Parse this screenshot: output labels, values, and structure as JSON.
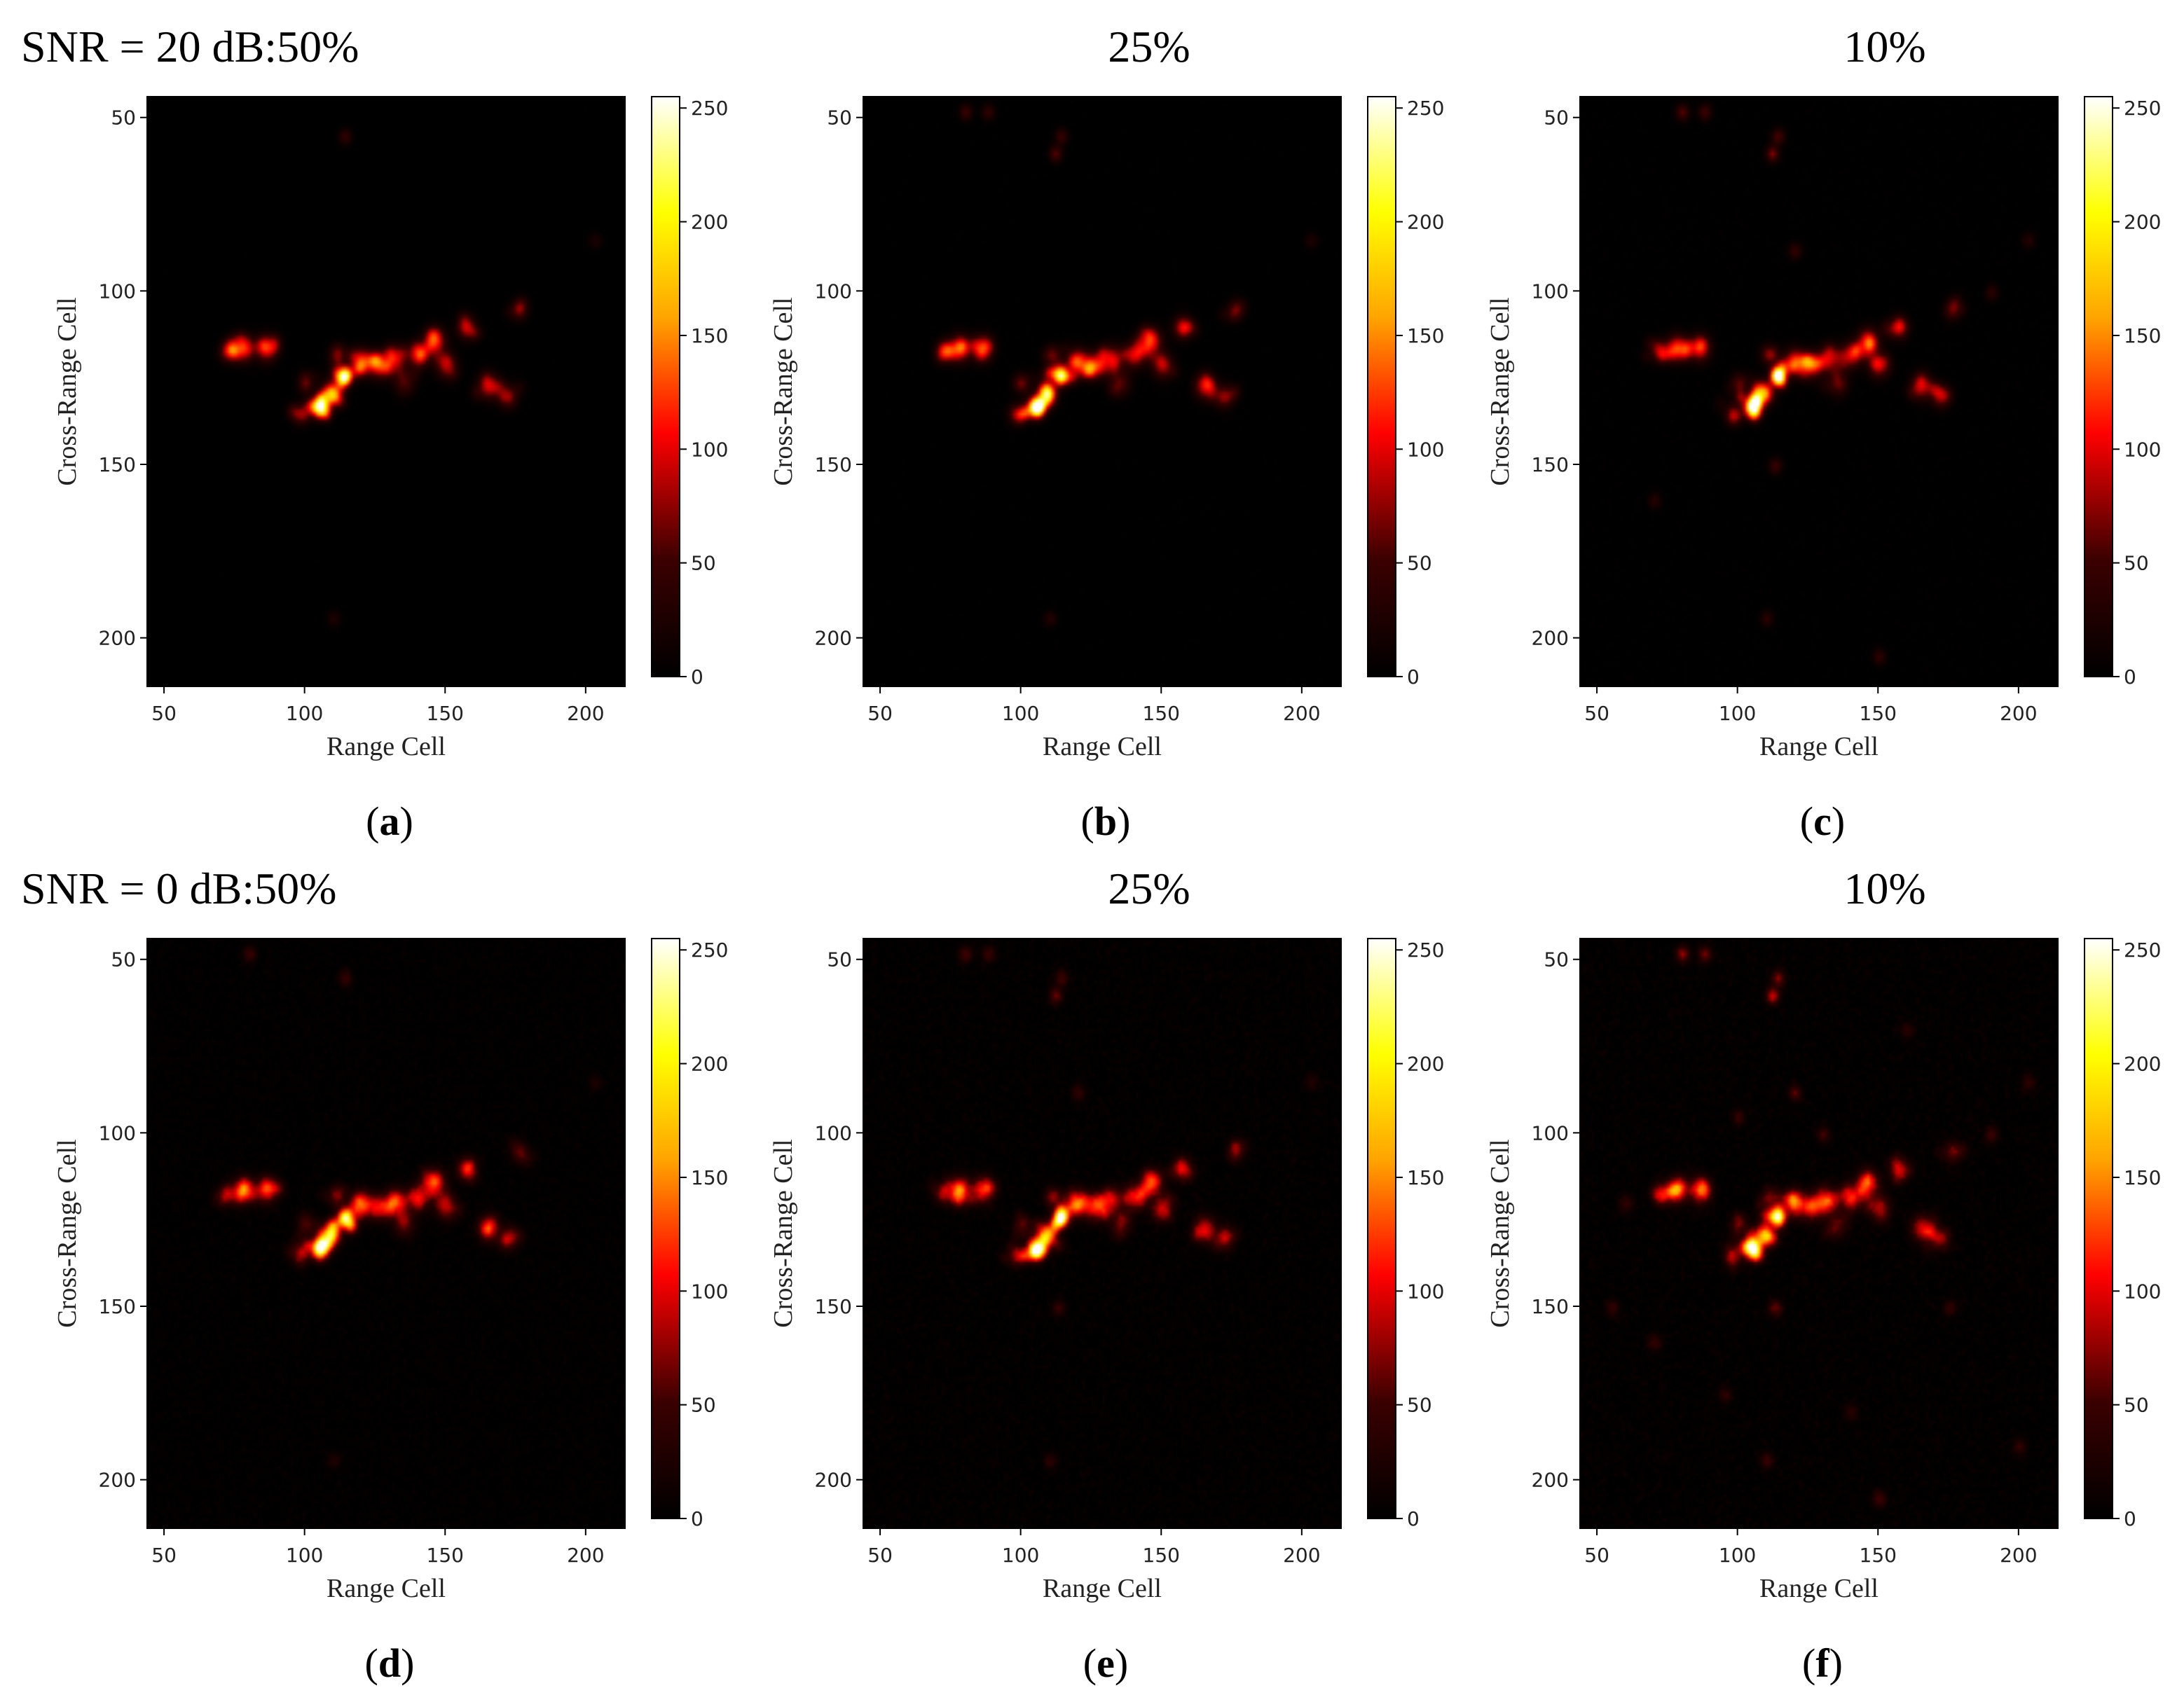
{
  "figure": {
    "rows": [
      {
        "snr_label": "SNR = 20 dB:",
        "panels": [
          {
            "header": "50%",
            "caption": "a",
            "noise": 0.05,
            "spread": 0.15
          },
          {
            "header": "25%",
            "caption": "b",
            "noise": 0.06,
            "spread": 0.28
          },
          {
            "header": "10%",
            "caption": "c",
            "noise": 0.08,
            "spread": 0.55
          }
        ]
      },
      {
        "snr_label": "SNR = 0 dB:",
        "panels": [
          {
            "header": "50%",
            "caption": "d",
            "noise": 0.22,
            "spread": 0.2
          },
          {
            "header": "25%",
            "caption": "e",
            "noise": 0.28,
            "spread": 0.4
          },
          {
            "header": "10%",
            "caption": "f",
            "noise": 0.3,
            "spread": 1.0
          }
        ]
      }
    ]
  },
  "chart_data": {
    "type": "heatmap",
    "xlabel": "Range Cell",
    "ylabel": "Cross-Range Cell",
    "x_ticks": [
      50,
      100,
      150,
      200
    ],
    "y_ticks": [
      50,
      100,
      150,
      200
    ],
    "xlim": [
      44,
      214
    ],
    "ylim": [
      214,
      44
    ],
    "colorbar": {
      "ticks": [
        0,
        50,
        100,
        150,
        200,
        250
      ],
      "range": [
        0,
        255
      ],
      "colormap": "hot"
    },
    "colormap_stops": [
      "#000000",
      "#3a0000",
      "#ff0000",
      "#ffa500",
      "#ffff00",
      "#ffffff"
    ],
    "target_scatterers": [
      {
        "x": 105,
        "y": 133,
        "intensity": 245,
        "sigma": 2.0
      },
      {
        "x": 114,
        "y": 124,
        "intensity": 230,
        "sigma": 1.8
      },
      {
        "x": 109,
        "y": 129,
        "intensity": 160,
        "sigma": 2.2
      },
      {
        "x": 78,
        "y": 116,
        "intensity": 120,
        "sigma": 2.5
      },
      {
        "x": 86,
        "y": 116,
        "intensity": 110,
        "sigma": 2.5
      },
      {
        "x": 72,
        "y": 117,
        "intensity": 80,
        "sigma": 2.0
      },
      {
        "x": 120,
        "y": 120,
        "intensity": 120,
        "sigma": 2.5
      },
      {
        "x": 126,
        "y": 121,
        "intensity": 100,
        "sigma": 2.5
      },
      {
        "x": 132,
        "y": 119,
        "intensity": 90,
        "sigma": 2.5
      },
      {
        "x": 140,
        "y": 118,
        "intensity": 95,
        "sigma": 2.5
      },
      {
        "x": 146,
        "y": 114,
        "intensity": 110,
        "sigma": 2.5
      },
      {
        "x": 150,
        "y": 121,
        "intensity": 80,
        "sigma": 2.5
      },
      {
        "x": 157,
        "y": 110,
        "intensity": 90,
        "sigma": 2.2
      },
      {
        "x": 165,
        "y": 127,
        "intensity": 90,
        "sigma": 2.5
      },
      {
        "x": 172,
        "y": 130,
        "intensity": 75,
        "sigma": 2.2
      },
      {
        "x": 176,
        "y": 105,
        "intensity": 60,
        "sigma": 2.0
      },
      {
        "x": 98,
        "y": 135,
        "intensity": 70,
        "sigma": 2.0
      },
      {
        "x": 111,
        "y": 118,
        "intensity": 60,
        "sigma": 2.0
      },
      {
        "x": 135,
        "y": 126,
        "intensity": 55,
        "sigma": 2.5
      },
      {
        "x": 100,
        "y": 126,
        "intensity": 50,
        "sigma": 2.0
      }
    ],
    "sidelobe_points": [
      {
        "x": 114,
        "y": 55,
        "intensity": 70
      },
      {
        "x": 110,
        "y": 194,
        "intensity": 45
      },
      {
        "x": 203,
        "y": 85,
        "intensity": 40
      },
      {
        "x": 80,
        "y": 48,
        "intensity": 75
      },
      {
        "x": 88,
        "y": 48,
        "intensity": 65
      },
      {
        "x": 112,
        "y": 60,
        "intensity": 90
      },
      {
        "x": 113,
        "y": 150,
        "intensity": 60
      },
      {
        "x": 120,
        "y": 88,
        "intensity": 55
      },
      {
        "x": 150,
        "y": 205,
        "intensity": 50
      },
      {
        "x": 70,
        "y": 160,
        "intensity": 40
      },
      {
        "x": 190,
        "y": 100,
        "intensity": 45
      },
      {
        "x": 200,
        "y": 190,
        "intensity": 40
      },
      {
        "x": 55,
        "y": 150,
        "intensity": 40
      },
      {
        "x": 140,
        "y": 180,
        "intensity": 35
      },
      {
        "x": 95,
        "y": 175,
        "intensity": 35
      },
      {
        "x": 160,
        "y": 70,
        "intensity": 35
      },
      {
        "x": 130,
        "y": 100,
        "intensity": 45
      },
      {
        "x": 100,
        "y": 95,
        "intensity": 40
      },
      {
        "x": 175,
        "y": 150,
        "intensity": 40
      },
      {
        "x": 60,
        "y": 120,
        "intensity": 40
      }
    ]
  }
}
